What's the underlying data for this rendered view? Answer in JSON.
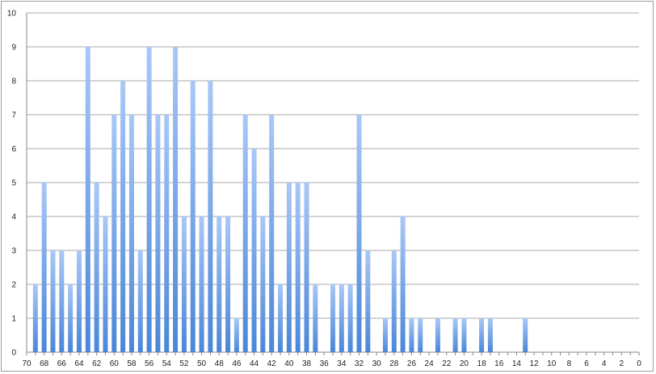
{
  "chart_data": {
    "type": "bar",
    "title": "",
    "xlabel": "",
    "ylabel": "",
    "x_reversed": true,
    "xlim": [
      70,
      0
    ],
    "ylim": [
      0,
      10
    ],
    "x_ticks": [
      70,
      68,
      66,
      64,
      62,
      60,
      58,
      56,
      54,
      52,
      50,
      48,
      46,
      44,
      42,
      40,
      38,
      36,
      34,
      32,
      30,
      28,
      26,
      24,
      22,
      20,
      18,
      16,
      14,
      12,
      10,
      8,
      6,
      4,
      2,
      0
    ],
    "y_ticks": [
      0,
      1,
      2,
      3,
      4,
      5,
      6,
      7,
      8,
      9,
      10
    ],
    "grid": true,
    "legend": "none",
    "bar_color": "#4a86d8",
    "bar_highlight": "#a9c8f7",
    "x": [
      69,
      68,
      67,
      66,
      65,
      64,
      63,
      62,
      61,
      60,
      59,
      58,
      57,
      56,
      55,
      54,
      53,
      52,
      51,
      50,
      49,
      48,
      47,
      46,
      45,
      44,
      43,
      42,
      41,
      40,
      39,
      38,
      37,
      36,
      35,
      34,
      33,
      32,
      31,
      30,
      29,
      28,
      27,
      26,
      25,
      24,
      23,
      22,
      21,
      20,
      19,
      18,
      17,
      16,
      15,
      14,
      13
    ],
    "values": [
      2,
      5,
      3,
      3,
      2,
      3,
      9,
      5,
      4,
      7,
      8,
      7,
      3,
      9,
      7,
      7,
      9,
      4,
      8,
      4,
      8,
      4,
      4,
      1,
      7,
      6,
      4,
      7,
      2,
      5,
      5,
      5,
      2,
      0,
      2,
      2,
      2,
      7,
      3,
      0,
      1,
      3,
      4,
      1,
      1,
      0,
      1,
      0,
      1,
      1,
      0,
      1,
      1,
      0,
      0,
      0,
      1
    ]
  }
}
